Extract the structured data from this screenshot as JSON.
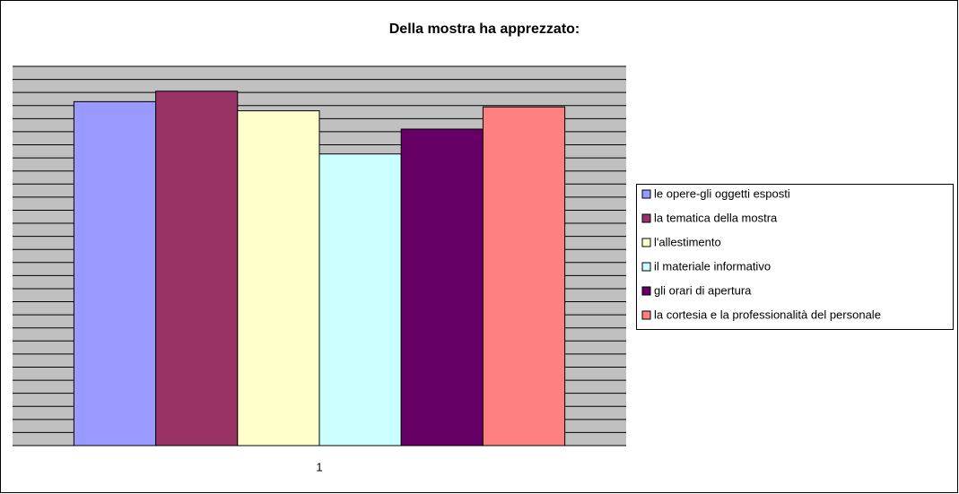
{
  "chart_data": {
    "type": "bar",
    "title": "Della mostra ha apprezzato:",
    "categories": [
      "1"
    ],
    "series": [
      {
        "name": "le opere-gli oggetti esposti",
        "color": "#9999ff",
        "values": [
          26.3
        ]
      },
      {
        "name": "la tematica della mostra",
        "color": "#993366",
        "values": [
          27.1
        ]
      },
      {
        "name": "l'allestimento",
        "color": "#ffffcc",
        "values": [
          25.6
        ]
      },
      {
        "name": "il materiale informativo",
        "color": "#ccffff",
        "values": [
          22.3
        ]
      },
      {
        "name": "gli orari di apertura",
        "color": "#660066",
        "values": [
          24.2
        ]
      },
      {
        "name": "la cortesia e la professionalità del personale",
        "color": "#ff8080",
        "values": [
          25.9
        ]
      }
    ],
    "ylim": [
      0,
      29
    ],
    "yticks": [
      0,
      1,
      2,
      3,
      4,
      5,
      6,
      7,
      8,
      9,
      10,
      11,
      12,
      13,
      14,
      15,
      16,
      17,
      18,
      19,
      20,
      21,
      22,
      23,
      24,
      25,
      26,
      27,
      28,
      29
    ],
    "grid": true,
    "legend": "right"
  }
}
